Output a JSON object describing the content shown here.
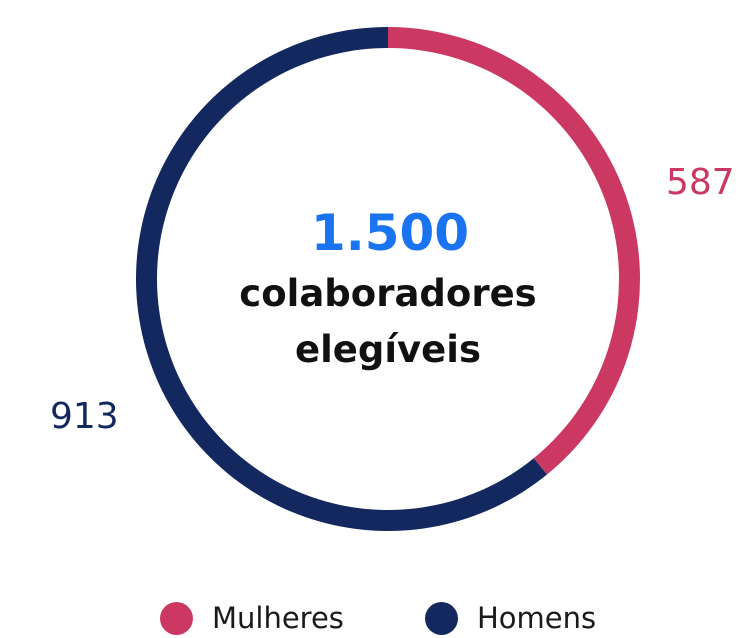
{
  "chart_data": {
    "type": "pie",
    "title": "",
    "center": {
      "total": "1.500",
      "label_line1": "colaboradores",
      "label_line2": "elegíveis"
    },
    "slices": [
      {
        "name": "Mulheres",
        "value": 587,
        "label": "587",
        "color": "#cb3862"
      },
      {
        "name": "Homens",
        "value": 913,
        "label": "913",
        "color": "#13285f"
      }
    ],
    "legend_position": "bottom",
    "accent_color": "#1a73f0"
  }
}
